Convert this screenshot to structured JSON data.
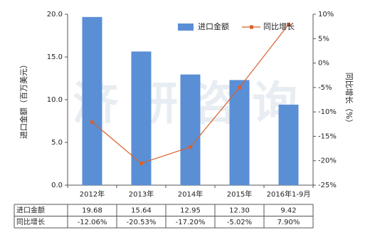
{
  "chart_data": {
    "type": "bar",
    "watermark": "济研咨询",
    "y_label": "进口金额（百万美元）",
    "y2_label": "同比增长（%）",
    "categories": [
      "2012年",
      "2013年",
      "2014年",
      "2015年",
      "2016年1-9月"
    ],
    "series": [
      {
        "name": "进口金额",
        "type": "bar",
        "color": "#5a8fd6",
        "values": [
          19.68,
          15.64,
          12.95,
          12.3,
          9.42
        ],
        "value_labels": [
          "19.68",
          "15.64",
          "12.95",
          "12.30",
          "9.42"
        ]
      },
      {
        "name": "同比增长",
        "type": "line",
        "axis": "y2",
        "color": "#d9602b",
        "values": [
          -12.06,
          -20.53,
          -17.2,
          -5.02,
          7.9
        ],
        "value_labels": [
          "-12.06%",
          "-20.53%",
          "-17.20%",
          "-5.02%",
          "7.90%"
        ]
      }
    ],
    "ylim": [
      0,
      20
    ],
    "yticks": [
      {
        "value": 0,
        "label": "0.0"
      },
      {
        "value": 5,
        "label": "5.0"
      },
      {
        "value": 10,
        "label": "10.0"
      },
      {
        "value": 15,
        "label": "15.0"
      },
      {
        "value": 20,
        "label": "20.0"
      }
    ],
    "y2lim": [
      -25,
      10
    ],
    "y2ticks": [
      {
        "value": -25,
        "label": "-25%"
      },
      {
        "value": -20,
        "label": "-20%"
      },
      {
        "value": -15,
        "label": "-15%"
      },
      {
        "value": -10,
        "label": "-10%"
      },
      {
        "value": -5,
        "label": "-5%"
      },
      {
        "value": 0,
        "label": "0%"
      },
      {
        "value": 5,
        "label": "5%"
      },
      {
        "value": 10,
        "label": "10%"
      }
    ],
    "legend": "top-right"
  }
}
